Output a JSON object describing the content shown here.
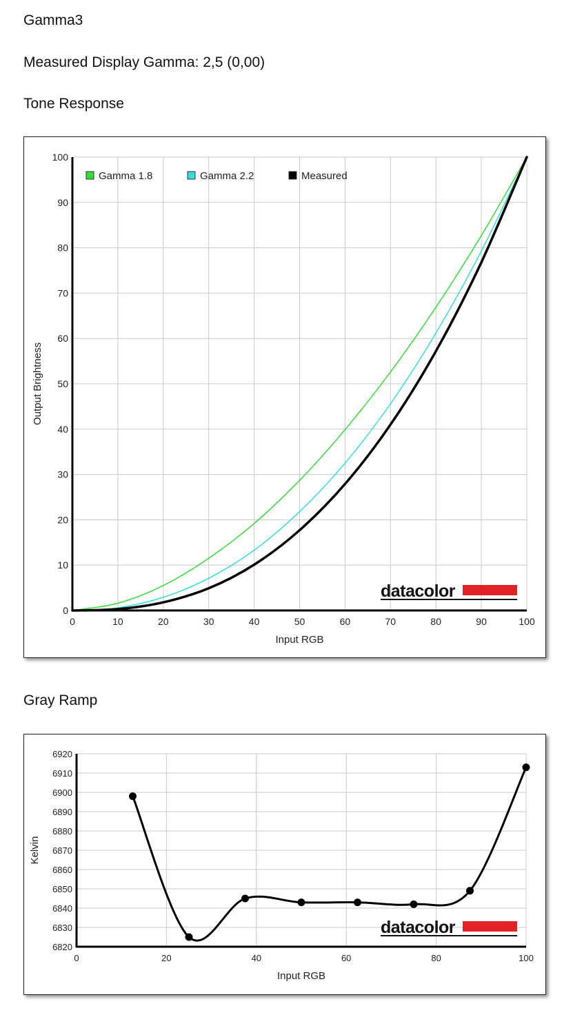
{
  "page": {
    "title": "Gamma3",
    "measured_gamma": "Measured Display Gamma: 2,5 (0,00)",
    "tone_heading": "Tone Response",
    "gray_heading": "Gray Ramp"
  },
  "colors": {
    "gamma18": "#33dd33",
    "gamma22": "#33dddd",
    "measured": "#000000",
    "grid": "#c8c8c8",
    "logo_bar": "#e32228"
  },
  "logo": {
    "text": "datacolor"
  },
  "chart_data": [
    {
      "id": "tone-response",
      "type": "line",
      "xlabel": "Input RGB",
      "ylabel": "Output Brightness",
      "xlim": [
        0,
        100
      ],
      "ylim": [
        0,
        100
      ],
      "xticks": [
        0,
        10,
        20,
        30,
        40,
        50,
        60,
        70,
        80,
        90,
        100
      ],
      "yticks": [
        0,
        10,
        20,
        30,
        40,
        50,
        60,
        70,
        80,
        90,
        100
      ],
      "grid": true,
      "legend_position": "top-left",
      "series": [
        {
          "name": "Gamma 1.8",
          "color": "#33dd33",
          "x": [
            0,
            10,
            20,
            30,
            40,
            50,
            60,
            70,
            80,
            90,
            100
          ],
          "y": [
            0,
            1.6,
            5.5,
            11.5,
            19.2,
            28.7,
            39.9,
            52.6,
            66.9,
            82.7,
            100
          ]
        },
        {
          "name": "Gamma 2.2",
          "color": "#33dddd",
          "x": [
            0,
            10,
            20,
            30,
            40,
            50,
            60,
            70,
            80,
            90,
            100
          ],
          "y": [
            0,
            0.6,
            2.9,
            7.1,
            13.3,
            21.8,
            32.5,
            45.6,
            61.2,
            79.3,
            100
          ]
        },
        {
          "name": "Measured",
          "color": "#000000",
          "x": [
            0,
            10,
            20,
            30,
            40,
            50,
            60,
            70,
            80,
            90,
            100
          ],
          "y": [
            0,
            0.3,
            1.8,
            4.9,
            10.1,
            17.7,
            27.9,
            41.0,
            57.2,
            76.8,
            100
          ]
        }
      ]
    },
    {
      "id": "gray-ramp",
      "type": "line",
      "xlabel": "Input RGB",
      "ylabel": "Kelvin",
      "xlim": [
        0,
        100
      ],
      "ylim": [
        6820,
        6920
      ],
      "xticks": [
        0,
        20,
        40,
        60,
        80,
        100
      ],
      "yticks": [
        6820,
        6830,
        6840,
        6850,
        6860,
        6870,
        6880,
        6890,
        6900,
        6910,
        6920
      ],
      "grid": true,
      "series": [
        {
          "color": "#000000",
          "x": [
            12.5,
            25,
            37.5,
            50,
            62.5,
            75,
            87.5,
            100
          ],
          "y": [
            6898,
            6825,
            6845,
            6843,
            6843,
            6842,
            6849,
            6913
          ]
        }
      ]
    }
  ]
}
